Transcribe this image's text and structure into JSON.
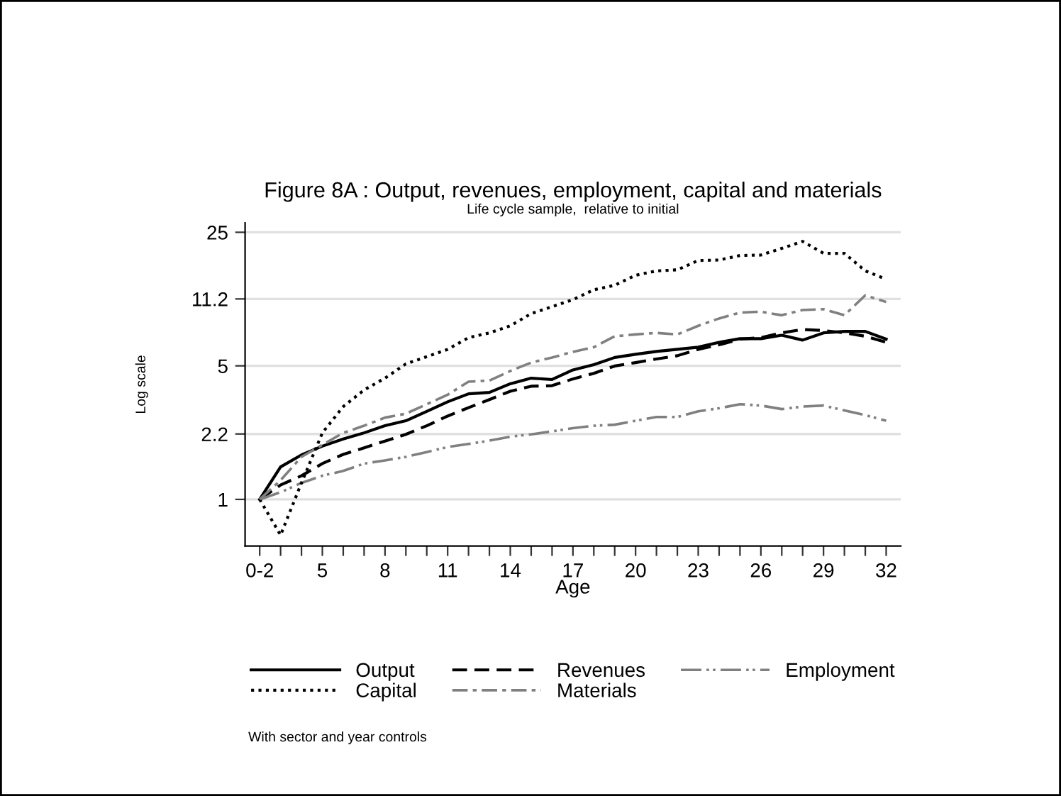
{
  "chart_data": {
    "type": "line",
    "title": "Figure 8A : Output, revenues, employment, capital and materials",
    "subtitle": "Life cycle sample,  relative to initial",
    "xlabel": "Age",
    "ylabel": "Log scale",
    "annotations": [
      "With sector and year controls"
    ],
    "x": [
      2,
      3,
      4,
      5,
      6,
      7,
      8,
      9,
      10,
      11,
      12,
      13,
      14,
      15,
      16,
      17,
      18,
      19,
      20,
      21,
      22,
      23,
      24,
      25,
      26,
      27,
      28,
      29,
      30,
      31,
      32
    ],
    "series": [
      {
        "name": "Output",
        "color": "#000000",
        "line_style": "solid",
        "values": [
          1,
          1.48,
          1.71,
          1.9,
          2.07,
          2.23,
          2.43,
          2.58,
          2.89,
          3.24,
          3.57,
          3.63,
          4.03,
          4.31,
          4.24,
          4.76,
          5.07,
          5.53,
          5.75,
          5.95,
          6.1,
          6.26,
          6.64,
          6.94,
          6.94,
          7.23,
          6.82,
          7.44,
          7.57,
          7.57,
          6.9
        ]
      },
      {
        "name": "Revenues",
        "color": "#000000",
        "line_style": "dashed",
        "values": [
          1,
          1.19,
          1.33,
          1.54,
          1.72,
          1.86,
          2.02,
          2.19,
          2.43,
          2.73,
          3.02,
          3.33,
          3.68,
          3.91,
          3.94,
          4.27,
          4.57,
          4.99,
          5.2,
          5.43,
          5.65,
          6.1,
          6.44,
          6.9,
          7.02,
          7.44,
          7.75,
          7.65,
          7.44,
          7.14,
          6.64
        ]
      },
      {
        "name": "Employment",
        "color": "#808080",
        "line_style": "dashdotdot",
        "values": [
          1,
          1.09,
          1.22,
          1.33,
          1.41,
          1.54,
          1.6,
          1.67,
          1.77,
          1.88,
          1.95,
          2.03,
          2.13,
          2.19,
          2.27,
          2.36,
          2.43,
          2.46,
          2.58,
          2.7,
          2.7,
          2.89,
          3.0,
          3.15,
          3.1,
          2.97,
          3.06,
          3.1,
          2.92,
          2.76,
          2.58
        ]
      },
      {
        "name": "Capital",
        "color": "#000000",
        "line_style": "dotted",
        "values": [
          1,
          0.65,
          1.22,
          2.23,
          3.06,
          3.74,
          4.31,
          5.12,
          5.58,
          6.1,
          7.02,
          7.44,
          8.1,
          9.38,
          10.2,
          11.1,
          12.5,
          13.2,
          14.9,
          15.7,
          15.9,
          17.8,
          17.9,
          18.9,
          19.0,
          20.6,
          22.4,
          19.4,
          19.4,
          15.7,
          14.2
        ]
      },
      {
        "name": "Materials",
        "color": "#808080",
        "line_style": "dashdot",
        "values": [
          1,
          1.26,
          1.67,
          1.93,
          2.23,
          2.43,
          2.68,
          2.81,
          3.15,
          3.53,
          4.13,
          4.19,
          4.7,
          5.2,
          5.53,
          5.92,
          6.26,
          7.14,
          7.3,
          7.44,
          7.3,
          8.1,
          8.85,
          9.5,
          9.6,
          9.2,
          9.8,
          9.9,
          9.2,
          11.7,
          10.8
        ]
      }
    ],
    "log": "y",
    "ylim": [
      0.57,
      28
    ],
    "yticks": [
      1,
      2.2,
      5,
      11.2,
      25
    ],
    "xlim": [
      1.3,
      32.7
    ],
    "xticks": [
      {
        "value": 2,
        "label": "0-2"
      },
      {
        "value": 3,
        "label": null
      },
      {
        "value": 4,
        "label": null
      },
      5,
      {
        "value": 6,
        "label": null
      },
      {
        "value": 7,
        "label": null
      },
      8,
      {
        "value": 9,
        "label": null
      },
      {
        "value": 10,
        "label": null
      },
      11,
      {
        "value": 12,
        "label": null
      },
      {
        "value": 13,
        "label": null
      },
      14,
      {
        "value": 15,
        "label": null
      },
      {
        "value": 16,
        "label": null
      },
      17,
      {
        "value": 18,
        "label": null
      },
      {
        "value": 19,
        "label": null
      },
      20,
      {
        "value": 21,
        "label": null
      },
      {
        "value": 22,
        "label": null
      },
      23,
      {
        "value": 24,
        "label": null
      },
      {
        "value": 25,
        "label": null
      },
      26,
      {
        "value": 27,
        "label": null
      },
      {
        "value": 28,
        "label": null
      },
      29,
      {
        "value": 30,
        "label": null
      },
      {
        "value": 31,
        "label": null
      },
      32
    ],
    "grid": "y",
    "legend": "bottom"
  }
}
